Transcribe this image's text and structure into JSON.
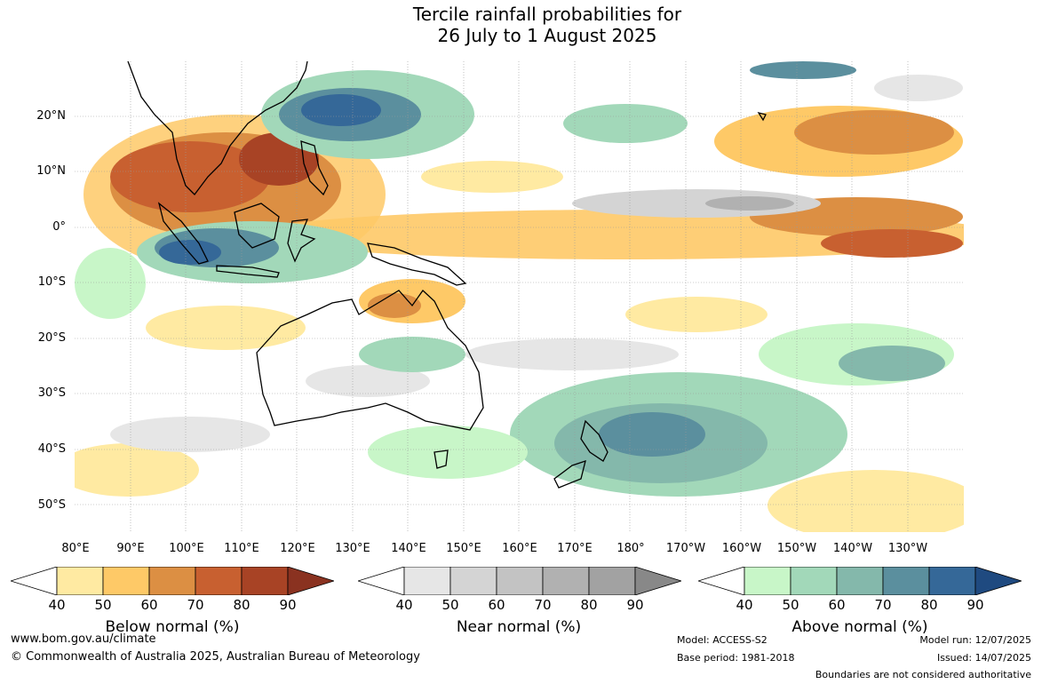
{
  "title": {
    "line1": "Tercile rainfall probabilities for",
    "line2": "26 July to 1 August 2025"
  },
  "map": {
    "lat_labels": [
      "20°N",
      "10°N",
      "0°",
      "10°S",
      "20°S",
      "30°S",
      "40°S",
      "50°S"
    ],
    "lon_labels": [
      "80°E",
      "90°E",
      "100°E",
      "110°E",
      "120°E",
      "130°E",
      "140°E",
      "150°E",
      "160°E",
      "170°E",
      "180°",
      "170°W",
      "160°W",
      "150°W",
      "140°W",
      "130°W"
    ],
    "gridlines": true
  },
  "colorbars": [
    {
      "name": "below",
      "title": "Below normal (%)",
      "ticks": [
        "40",
        "50",
        "60",
        "70",
        "80",
        "90"
      ],
      "colors": [
        "#ffffff",
        "#ffeaa2",
        "#fec967",
        "#dc8f43",
        "#c86030",
        "#a84325",
        "#8a3220"
      ]
    },
    {
      "name": "near",
      "title": "Near normal (%)",
      "ticks": [
        "40",
        "50",
        "60",
        "70",
        "80",
        "90"
      ],
      "colors": [
        "#ffffff",
        "#e6e6e6",
        "#d4d4d4",
        "#c3c3c3",
        "#b1b1b1",
        "#a2a2a2",
        "#888888"
      ]
    },
    {
      "name": "above",
      "title": "Above normal (%)",
      "ticks": [
        "40",
        "50",
        "60",
        "70",
        "80",
        "90"
      ],
      "colors": [
        "#ffffff",
        "#c8f6c8",
        "#a2d8b9",
        "#84b8ab",
        "#5b8f9e",
        "#356898",
        "#1f4a80"
      ]
    }
  ],
  "footer": {
    "website": "www.bom.gov.au/climate",
    "copyright": "© Commonwealth of Australia 2025, Australian Bureau of Meteorology",
    "model": "Model: ACCESS-S2",
    "base_period": "Base period: 1981-2018",
    "model_run": "Model run: 12/07/2025",
    "issued": "Issued: 14/07/2025",
    "boundaries": "Boundaries are not considered authoritative"
  }
}
